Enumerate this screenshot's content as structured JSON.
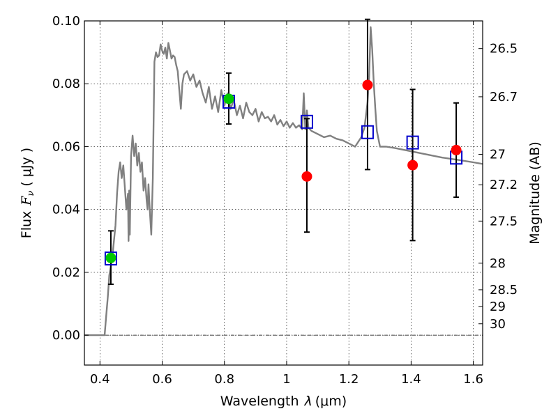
{
  "chart_data": {
    "type": "scatter",
    "title": "",
    "xlabel": "Wavelength",
    "xlabel_symbol": "λ",
    "xlabel_unit": "(μm)",
    "ylabel": "Flux",
    "ylabel_symbol": "F",
    "ylabel_subscript": "ν",
    "ylabel_unit": "( μJy )",
    "y2label": "Magnitude (AB)",
    "xlim": [
      0.35,
      1.63
    ],
    "ylim": [
      -0.0095,
      0.1
    ],
    "grid": true,
    "x_ticks": [
      0.4,
      0.6,
      0.8,
      1.0,
      1.2,
      1.4,
      1.6
    ],
    "x_tick_labels": [
      "0.4",
      "0.6",
      "0.8",
      "1",
      "1.2",
      "1.4",
      "1.6"
    ],
    "y_ticks": [
      0.0,
      0.02,
      0.04,
      0.06,
      0.08,
      0.1
    ],
    "y_tick_labels": [
      "0.00",
      "0.02",
      "0.04",
      "0.06",
      "0.08",
      "0.10"
    ],
    "mag_ticks": [
      26.5,
      26.7,
      27,
      27.2,
      27.5,
      28,
      28.5,
      29,
      30
    ],
    "mag_tick_labels": [
      "26.5",
      "26.7",
      "27",
      "27.2",
      "27.5",
      "28",
      "28.5",
      "29",
      "30"
    ],
    "series": [
      {
        "name": "model_spectrum",
        "kind": "line",
        "color": "#808080",
        "x": [
          0.35,
          0.41,
          0.415,
          0.42,
          0.425,
          0.43,
          0.44,
          0.45,
          0.455,
          0.46,
          0.465,
          0.47,
          0.475,
          0.48,
          0.485,
          0.49,
          0.492,
          0.494,
          0.496,
          0.5,
          0.505,
          0.51,
          0.515,
          0.52,
          0.525,
          0.53,
          0.535,
          0.54,
          0.545,
          0.55,
          0.553,
          0.556,
          0.56,
          0.565,
          0.57,
          0.575,
          0.58,
          0.585,
          0.59,
          0.595,
          0.6,
          0.605,
          0.61,
          0.615,
          0.62,
          0.625,
          0.63,
          0.635,
          0.64,
          0.645,
          0.65,
          0.66,
          0.665,
          0.67,
          0.68,
          0.69,
          0.7,
          0.71,
          0.72,
          0.73,
          0.74,
          0.75,
          0.76,
          0.77,
          0.78,
          0.79,
          0.8,
          0.81,
          0.82,
          0.83,
          0.84,
          0.85,
          0.86,
          0.87,
          0.88,
          0.89,
          0.9,
          0.91,
          0.92,
          0.93,
          0.94,
          0.95,
          0.96,
          0.97,
          0.98,
          0.99,
          1.0,
          1.01,
          1.02,
          1.03,
          1.04,
          1.05,
          1.055,
          1.06,
          1.065,
          1.07,
          1.08,
          1.1,
          1.12,
          1.14,
          1.16,
          1.18,
          1.2,
          1.22,
          1.24,
          1.25,
          1.26,
          1.265,
          1.27,
          1.275,
          1.28,
          1.285,
          1.29,
          1.3,
          1.32,
          1.35,
          1.4,
          1.45,
          1.5,
          1.55,
          1.6,
          1.63
        ],
        "y": [
          0.0,
          0.0,
          0.0,
          0.006,
          0.012,
          0.019,
          0.025,
          0.035,
          0.045,
          0.052,
          0.055,
          0.05,
          0.054,
          0.047,
          0.04,
          0.045,
          0.03,
          0.046,
          0.032,
          0.057,
          0.0635,
          0.057,
          0.061,
          0.054,
          0.058,
          0.052,
          0.055,
          0.046,
          0.05,
          0.043,
          0.04,
          0.048,
          0.04,
          0.032,
          0.05,
          0.087,
          0.09,
          0.0885,
          0.089,
          0.0925,
          0.0905,
          0.0895,
          0.0915,
          0.088,
          0.093,
          0.0905,
          0.088,
          0.089,
          0.0885,
          0.086,
          0.084,
          0.072,
          0.08,
          0.083,
          0.084,
          0.081,
          0.083,
          0.079,
          0.081,
          0.077,
          0.074,
          0.079,
          0.072,
          0.076,
          0.071,
          0.078,
          0.073,
          0.077,
          0.072,
          0.075,
          0.07,
          0.073,
          0.069,
          0.074,
          0.071,
          0.07,
          0.072,
          0.068,
          0.071,
          0.069,
          0.0695,
          0.068,
          0.07,
          0.067,
          0.0685,
          0.0665,
          0.068,
          0.066,
          0.0675,
          0.066,
          0.0668,
          0.0655,
          0.077,
          0.0655,
          0.0715,
          0.066,
          0.065,
          0.064,
          0.063,
          0.0635,
          0.0625,
          0.062,
          0.061,
          0.06,
          0.063,
          0.066,
          0.074,
          0.082,
          0.098,
          0.091,
          0.08,
          0.072,
          0.065,
          0.06,
          0.06,
          0.0595,
          0.0585,
          0.0575,
          0.0565,
          0.0558,
          0.055,
          0.0545
        ]
      },
      {
        "name": "model_bandpass_flux",
        "kind": "open_squares",
        "color": "#0000cc",
        "x": [
          0.435,
          0.814,
          1.065,
          1.26,
          1.405,
          1.545
        ],
        "y": [
          0.0244,
          0.0743,
          0.0679,
          0.0646,
          0.0613,
          0.0565
        ]
      },
      {
        "name": "observed_flux_green",
        "kind": "filled_circles",
        "color": "#00c800",
        "x": [
          0.435,
          0.814
        ],
        "y": [
          0.0246,
          0.0752
        ],
        "yerr_low": [
          0.0162,
          0.0672
        ],
        "yerr_high": [
          0.0332,
          0.0834
        ]
      },
      {
        "name": "observed_flux_red",
        "kind": "filled_circles",
        "color": "#ff0000",
        "x": [
          1.065,
          1.26,
          1.405,
          1.545
        ],
        "y": [
          0.0505,
          0.0796,
          0.0541,
          0.0589
        ],
        "yerr_low": [
          0.0328,
          0.0527,
          0.0301,
          0.0439
        ],
        "yerr_high": [
          0.0689,
          0.1005,
          0.0782,
          0.0739
        ]
      }
    ]
  }
}
